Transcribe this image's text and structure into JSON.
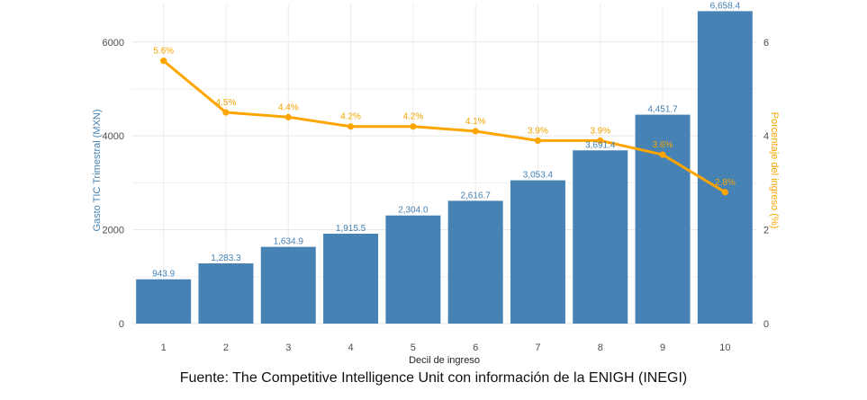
{
  "chart_data": {
    "type": "bar",
    "categories": [
      "1",
      "2",
      "3",
      "4",
      "5",
      "6",
      "7",
      "8",
      "9",
      "10"
    ],
    "series": [
      {
        "values": [
          943.9,
          1283.3,
          1634.9,
          1915.5,
          2304.0,
          2616.7,
          3053.4,
          3691.4,
          4451.7,
          6658.4
        ],
        "labels": [
          "943.9",
          "1,283.3",
          "1,634.9",
          "1,915.5",
          "2,304.0",
          "2,616.7",
          "3,053.4",
          "3,691.4",
          "4,451.7",
          "6,658.4"
        ],
        "color": "#4682b4",
        "axis": "left",
        "kind": "bar"
      },
      {
        "values": [
          5.6,
          4.5,
          4.4,
          4.2,
          4.2,
          4.1,
          3.9,
          3.9,
          3.6,
          2.8
        ],
        "labels": [
          "5.6%",
          "4.5%",
          "4.4%",
          "4.2%",
          "4.2%",
          "4.1%",
          "3.9%",
          "3.9%",
          "3.6%",
          "2.8%"
        ],
        "color": "#ffa500",
        "axis": "right",
        "kind": "line"
      }
    ],
    "xlabel": "Decil de ingreso",
    "ylabel": "Gasto TIC Trimestral (MXN)",
    "ylabel_right": "Porcentaje del ingreso (%)",
    "ylim": [
      0,
      6800
    ],
    "ylim_right": [
      0,
      6.8
    ],
    "yticks": [
      0,
      2000,
      4000,
      6000
    ],
    "yticks_right": [
      0,
      2,
      4,
      6
    ],
    "grid": true,
    "legend": "none"
  },
  "source": "Fuente: The Competitive Intelligence Unit con información de la ENIGH (INEGI)"
}
